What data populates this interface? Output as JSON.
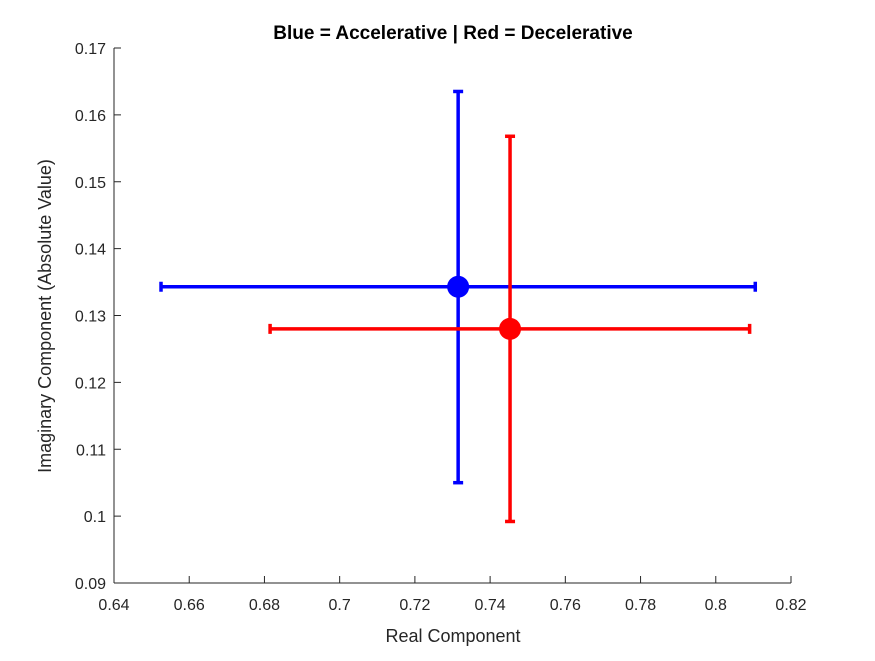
{
  "chart_data": {
    "type": "scatter",
    "title": "Blue = Accelerative | Red = Decelerative",
    "xlabel": "Real Component",
    "ylabel": "Imaginary Component (Absolute Value)",
    "xlim": [
      0.64,
      0.82
    ],
    "ylim": [
      0.09,
      0.17
    ],
    "x_ticks": [
      "0.64",
      "0.66",
      "0.68",
      "0.7",
      "0.72",
      "0.74",
      "0.76",
      "0.78",
      "0.8",
      "0.82"
    ],
    "y_ticks": [
      "0.09",
      "0.1",
      "0.11",
      "0.12",
      "0.13",
      "0.14",
      "0.15",
      "0.16",
      "0.17"
    ],
    "grid": false,
    "series": [
      {
        "color": "#0000ff",
        "points": [
          {
            "x": 0.7315,
            "y": 0.1343,
            "x_err": [
              0.6525,
              0.8105
            ],
            "y_err": [
              0.105,
              0.1635
            ]
          }
        ]
      },
      {
        "color": "#ff0000",
        "points": [
          {
            "x": 0.7453,
            "y": 0.128,
            "x_err": [
              0.6815,
              0.809
            ],
            "y_err": [
              0.0992,
              0.1568
            ]
          }
        ]
      }
    ]
  }
}
